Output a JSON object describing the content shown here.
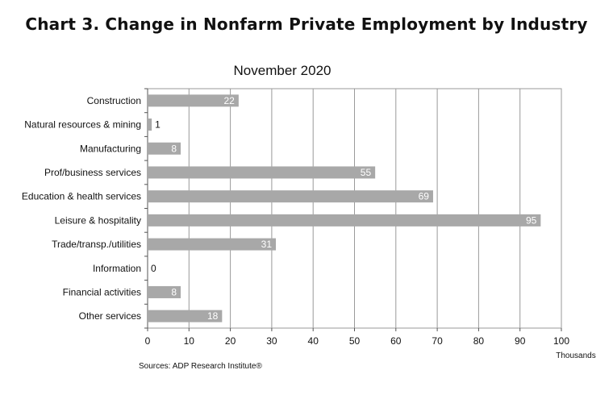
{
  "page_title": "Chart 3. Change in Nonfarm Private Employment by Industry",
  "source": "Sources: ADP Research Institute®",
  "chart_data": {
    "type": "bar",
    "orientation": "horizontal",
    "title": "November 2020",
    "xlabel": "Thousands",
    "ylabel": "",
    "xlim": [
      0,
      100
    ],
    "xticks": [
      0,
      10,
      20,
      30,
      40,
      50,
      60,
      70,
      80,
      90,
      100
    ],
    "grid": true,
    "bar_color": "#a8a8a8",
    "categories": [
      "Construction",
      "Natural resources & mining",
      "Manufacturing",
      "Prof/business services",
      "Education & health services",
      "Leisure & hospitality",
      "Trade/transp./utilities",
      "Information",
      "Financial activities",
      "Other services"
    ],
    "values": [
      22,
      1,
      8,
      55,
      69,
      95,
      31,
      0,
      8,
      18
    ]
  }
}
